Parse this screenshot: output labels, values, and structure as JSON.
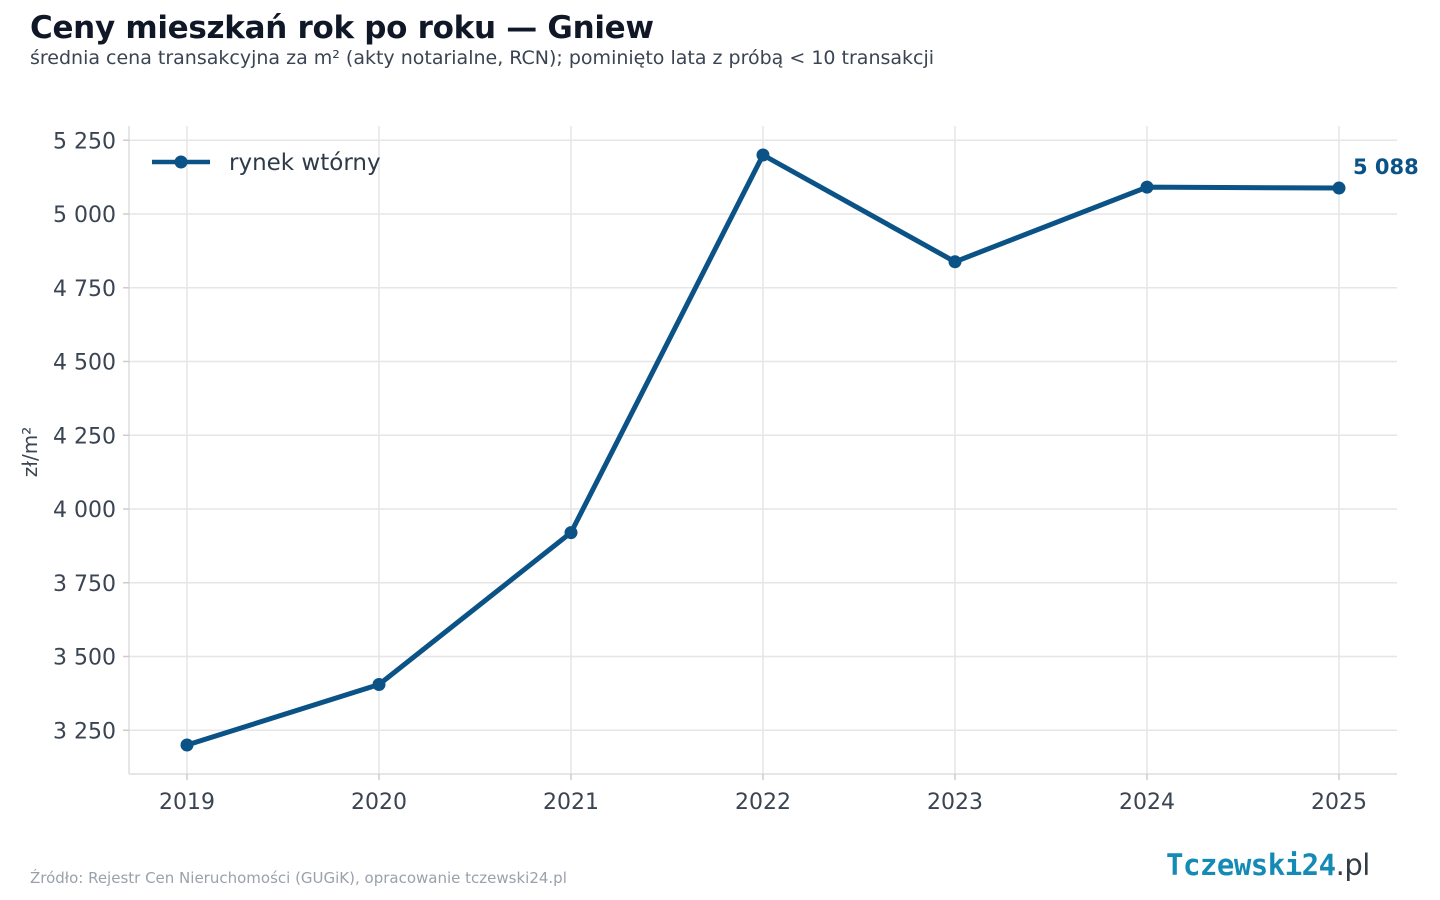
{
  "header": {
    "title": "Ceny mieszkań rok po roku — Gniew",
    "subtitle": "średnia cena transakcyjna za m² (akty notarialne, RCN); pominięto lata z próbą < 10 transakcji"
  },
  "footer": {
    "source": "Źródło: Rejestr Cen Nieruchomości (GUGiK), opracowanie tczewski24.pl",
    "logo_main": "Tczewski24",
    "logo_domain": ".pl"
  },
  "colors": {
    "series": "#0b5386",
    "grid": "#e6e6e6",
    "logo": "#148ab5"
  },
  "chart_data": {
    "type": "line",
    "title": "Ceny mieszkań rok po roku — Gniew",
    "xlabel": "",
    "ylabel": "zł/m²",
    "x": [
      2019,
      2020,
      2021,
      2022,
      2023,
      2024,
      2025
    ],
    "series": [
      {
        "name": "rynek wtórny",
        "values": [
          3200,
          3405,
          3920,
          5200,
          4838,
          5091,
          5088
        ]
      }
    ],
    "ylim": [
      3090,
      5300
    ],
    "yticks": [
      3250,
      3500,
      3750,
      4000,
      4250,
      4500,
      4750,
      5000,
      5250
    ],
    "ytick_labels": [
      "3 250",
      "3 500",
      "3 750",
      "4 000",
      "4 250",
      "4 500",
      "4 750",
      "5 000",
      "5 250"
    ],
    "xtick_labels": [
      "2019",
      "2020",
      "2021",
      "2022",
      "2023",
      "2024",
      "2025"
    ],
    "annotations": [
      {
        "x": 2025,
        "text": "5 088"
      }
    ],
    "grid": true,
    "legend_position": "top-left"
  }
}
